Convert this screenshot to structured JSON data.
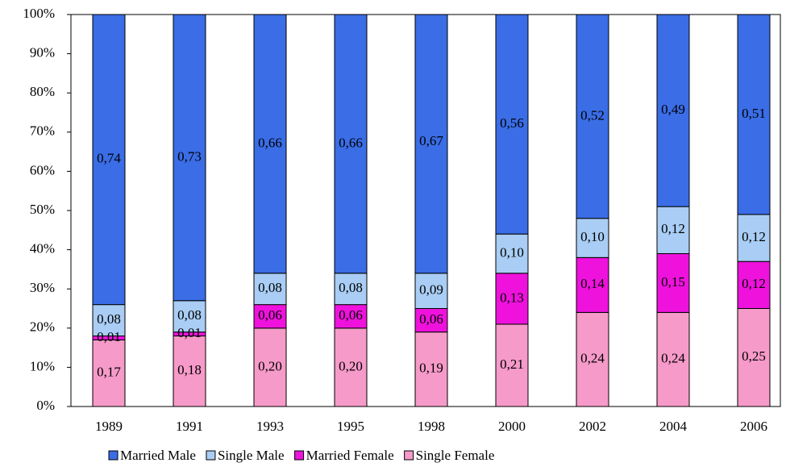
{
  "chart_data": {
    "type": "stacked_bar_100",
    "categories": [
      "1989",
      "1991",
      "1993",
      "1995",
      "1998",
      "2000",
      "2002",
      "2004",
      "2006"
    ],
    "series": [
      {
        "name": "Married Male",
        "color": "#3a6de6",
        "values": [
          74,
          73,
          66,
          66,
          67,
          56,
          52,
          49,
          51
        ],
        "value_labels": [
          "0,74",
          "0,73",
          "0,66",
          "0,66",
          "0,67",
          "0,56",
          "0,52",
          "0,49",
          "0,51"
        ]
      },
      {
        "name": "Single Male",
        "color": "#a9cdf4",
        "values": [
          8,
          8,
          8,
          8,
          9,
          10,
          10,
          12,
          12
        ],
        "value_labels": [
          "0,08",
          "0,08",
          "0,08",
          "0,08",
          "0,09",
          "0,10",
          "0,10",
          "0,12",
          "0,12"
        ]
      },
      {
        "name": "Married Female",
        "color": "#ee12dc",
        "values": [
          1,
          1,
          6,
          6,
          6,
          13,
          14,
          15,
          12
        ],
        "value_labels": [
          "0,01",
          "0,01",
          "0,06",
          "0,06",
          "0,06",
          "0,13",
          "0,14",
          "0,15",
          "0,12"
        ]
      },
      {
        "name": "Single Female",
        "color": "#f69ac9",
        "values": [
          17,
          18,
          20,
          20,
          19,
          21,
          24,
          24,
          25
        ],
        "value_labels": [
          "0,17",
          "0,18",
          "0,20",
          "0,20",
          "0,19",
          "0,21",
          "0,24",
          "0,24",
          "0,25"
        ]
      }
    ],
    "ylim": [
      0,
      100
    ],
    "yticks": [
      {
        "value": 0,
        "label": "0%"
      },
      {
        "value": 10,
        "label": "10%"
      },
      {
        "value": 20,
        "label": "20%"
      },
      {
        "value": 30,
        "label": "30%"
      },
      {
        "value": 40,
        "label": "40%"
      },
      {
        "value": 50,
        "label": "50%"
      },
      {
        "value": 60,
        "label": "60%"
      },
      {
        "value": 70,
        "label": "70%"
      },
      {
        "value": 80,
        "label": "80%"
      },
      {
        "value": 90,
        "label": "90%"
      },
      {
        "value": 100,
        "label": "100%"
      }
    ],
    "legend": "bottom"
  }
}
